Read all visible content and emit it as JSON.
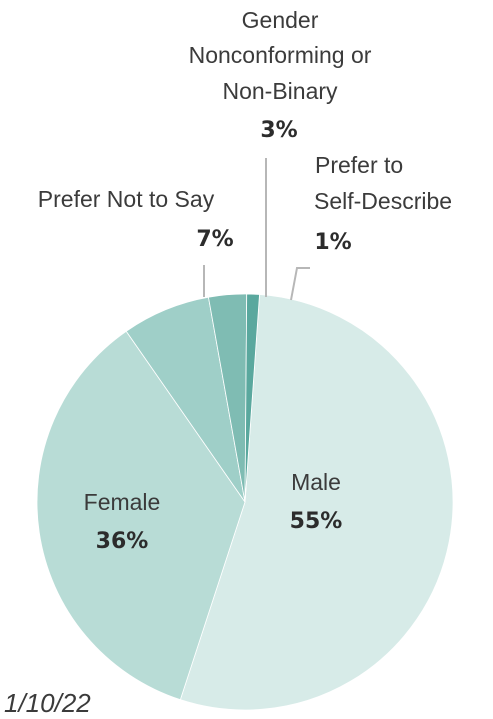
{
  "chart_data": {
    "type": "pie",
    "title": "",
    "slices": [
      {
        "label": "Male",
        "label_lines": [
          "Male"
        ],
        "value": 55,
        "value_label": "55%",
        "color": "#d7ebe8"
      },
      {
        "label": "Female",
        "label_lines": [
          "Female"
        ],
        "value": 36,
        "value_label": "36%",
        "color": "#b8dcd6"
      },
      {
        "label": "Prefer Not to Say",
        "label_lines": [
          "Prefer Not to Say"
        ],
        "value": 7,
        "value_label": "7%",
        "color": "#9fcfc8"
      },
      {
        "label": "Gender Nonconforming or Non-Binary",
        "label_lines": [
          "Gender",
          "Nonconforming or",
          "Non-Binary"
        ],
        "value": 3,
        "value_label": "3%",
        "color": "#7fbcb3"
      },
      {
        "label": "Prefer to Self-Describe",
        "label_lines": [
          "Prefer to",
          "Self-Describe"
        ],
        "value": 1,
        "value_label": "1%",
        "color": "#5aa89e"
      }
    ]
  },
  "footer_text": "1/10/22"
}
